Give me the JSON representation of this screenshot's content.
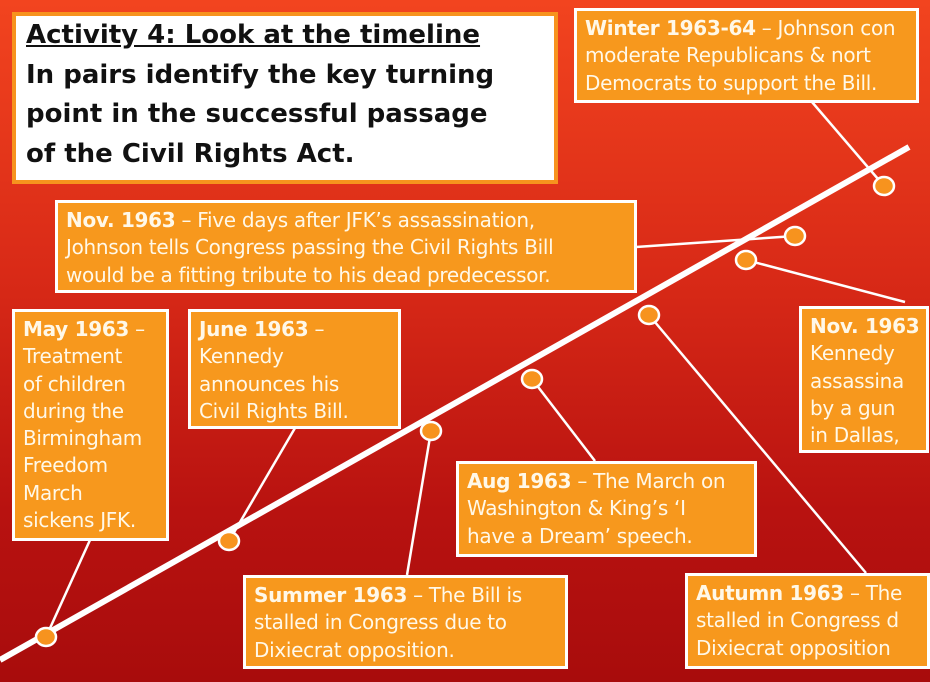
{
  "title": {
    "heading": "Activity 4: Look at the timeline",
    "lines": [
      "In pairs identify the key turning",
      "point in the successful passage",
      "of the Civil Rights Act."
    ]
  },
  "events": {
    "winter": {
      "date": "Winter 1963-64",
      "lines": [
        " – Johnson con",
        "moderate Republicans & nort",
        "Democrats to support the Bill."
      ]
    },
    "nov_tribute": {
      "date": "Nov. 1963",
      "lines": [
        " – Five days after JFK’s assassination,",
        "Johnson tells Congress passing the Civil Rights Bill",
        "would be a fitting tribute to his dead predecessor."
      ]
    },
    "may": {
      "date": "May 1963",
      "lines": [
        " –",
        "Treatment",
        "of children",
        "during the",
        "Birmingham",
        "Freedom",
        "March",
        "sickens JFK."
      ]
    },
    "june": {
      "date": "June 1963",
      "lines": [
        " –",
        "Kennedy",
        "announces his",
        "Civil Rights Bill."
      ]
    },
    "nov_assassination": {
      "date": "Nov. 1963",
      "lines": [
        "",
        "Kennedy",
        "assassina",
        "by a gun",
        "in Dallas,"
      ]
    },
    "aug": {
      "date": "Aug 1963",
      "lines": [
        " – The March on",
        "Washington & King’s ‘I",
        "have a Dream’ speech."
      ]
    },
    "summer": {
      "date": "Summer 1963",
      "lines": [
        " – The Bill is",
        "stalled in Congress due to",
        "Dixiecrat opposition."
      ]
    },
    "autumn": {
      "date": "Autumn 1963",
      "lines": [
        " – The",
        "stalled in Congress d",
        "Dixiecrat opposition"
      ]
    }
  },
  "colors": {
    "box": "#f7981d",
    "line": "#ffffff",
    "dot": "#f7931e"
  }
}
